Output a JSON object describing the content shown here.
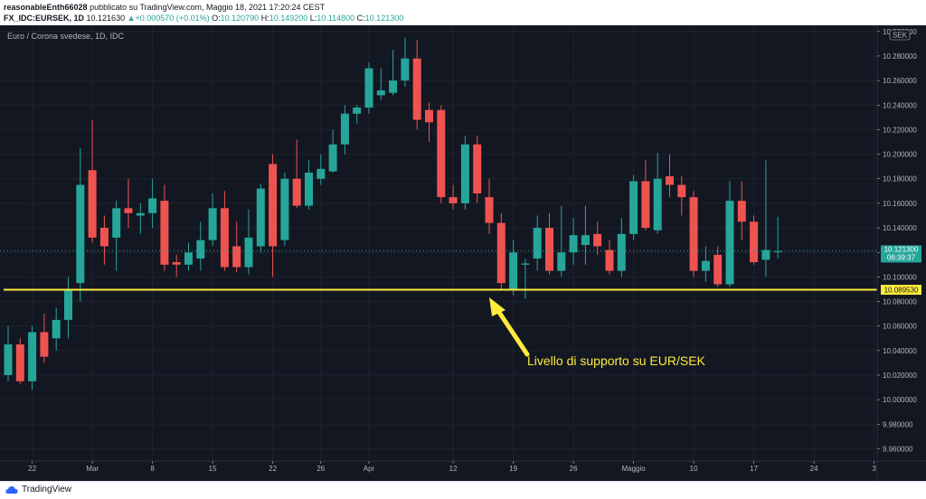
{
  "header": {
    "user": "reasonableEnth66028",
    "published": "pubblicato su TradingView.com, Maggio 18, 2021 17:20:24 CEST",
    "symbol": "FX_IDC:EURSEK, 1D",
    "last": "10.121630",
    "change": "+0.000570 (+0.01%)",
    "o_label": "O:",
    "o_val": "10.120790",
    "h_label": "H:",
    "h_val": "10.149200",
    "l_label": "L:",
    "l_val": "10.114800",
    "c_label": "C:",
    "c_val": "10.121300"
  },
  "footer": {
    "brand": "TradingView"
  },
  "colors": {
    "up": "#26a69a",
    "down": "#ef5350",
    "support": "#ffeb3b",
    "bg": "#131722",
    "grid": "#1e222d",
    "text": "#b2b5be"
  },
  "chart_data": {
    "type": "candlestick",
    "title": "Euro / Corona svedese, 1D, IDC",
    "currency": "SEK",
    "ylim": [
      9.95,
      10.305
    ],
    "y_ticks": [
      "10.300000",
      "10.280000",
      "10.260000",
      "10.240000",
      "10.220000",
      "10.200000",
      "10.180000",
      "10.160000",
      "10.140000",
      "10.120000",
      "10.100000",
      "10.080000",
      "10.060000",
      "10.040000",
      "10.020000",
      "10.000000",
      "9.980000",
      "9.960000"
    ],
    "x_ticks": [
      {
        "label": "22",
        "i": 2
      },
      {
        "label": "Mar",
        "i": 7
      },
      {
        "label": "8",
        "i": 12
      },
      {
        "label": "15",
        "i": 17
      },
      {
        "label": "22",
        "i": 22
      },
      {
        "label": "26",
        "i": 26
      },
      {
        "label": "Apr",
        "i": 30
      },
      {
        "label": "12",
        "i": 37
      },
      {
        "label": "19",
        "i": 42
      },
      {
        "label": "26",
        "i": 47
      },
      {
        "label": "Maggio",
        "i": 52
      },
      {
        "label": "10",
        "i": 57
      },
      {
        "label": "17",
        "i": 62
      },
      {
        "label": "24",
        "i": 67
      },
      {
        "label": "3",
        "i": 72
      }
    ],
    "candles": [
      [
        10.02,
        10.045,
        10.06,
        10.015
      ],
      [
        10.045,
        10.015,
        10.05,
        10.013
      ],
      [
        10.015,
        10.055,
        10.06,
        10.008
      ],
      [
        10.055,
        10.035,
        10.07,
        10.03
      ],
      [
        10.05,
        10.065,
        10.075,
        10.04
      ],
      [
        10.065,
        10.09,
        10.1,
        10.05
      ],
      [
        10.095,
        10.175,
        10.205,
        10.08
      ],
      [
        10.187,
        10.132,
        10.228,
        10.128
      ],
      [
        10.14,
        10.125,
        10.15,
        10.11
      ],
      [
        10.132,
        10.156,
        10.162,
        10.105
      ],
      [
        10.156,
        10.152,
        10.18,
        10.14
      ],
      [
        10.15,
        10.152,
        10.16,
        10.135
      ],
      [
        10.152,
        10.164,
        10.18,
        10.14
      ],
      [
        10.162,
        10.11,
        10.175,
        10.105
      ],
      [
        10.112,
        10.11,
        10.118,
        10.1
      ],
      [
        10.11,
        10.12,
        10.128,
        10.105
      ],
      [
        10.115,
        10.13,
        10.145,
        10.105
      ],
      [
        10.13,
        10.156,
        10.168,
        10.125
      ],
      [
        10.156,
        10.108,
        10.17,
        10.105
      ],
      [
        10.125,
        10.108,
        10.145,
        10.104
      ],
      [
        10.108,
        10.132,
        10.155,
        10.102
      ],
      [
        10.125,
        10.172,
        10.176,
        10.12
      ],
      [
        10.192,
        10.125,
        10.2,
        10.1
      ],
      [
        10.13,
        10.18,
        10.185,
        10.125
      ],
      [
        10.18,
        10.158,
        10.212,
        10.156
      ],
      [
        10.158,
        10.185,
        10.195,
        10.155
      ],
      [
        10.18,
        10.188,
        10.2,
        10.175
      ],
      [
        10.186,
        10.208,
        10.22,
        10.185
      ],
      [
        10.208,
        10.233,
        10.24,
        10.2
      ],
      [
        10.233,
        10.238,
        10.24,
        10.225
      ],
      [
        10.238,
        10.27,
        10.275,
        10.233
      ],
      [
        10.248,
        10.252,
        10.27,
        10.244
      ],
      [
        10.25,
        10.26,
        10.285,
        10.248
      ],
      [
        10.26,
        10.278,
        10.295,
        10.255
      ],
      [
        10.278,
        10.228,
        10.293,
        10.22
      ],
      [
        10.236,
        10.226,
        10.242,
        10.21
      ],
      [
        10.236,
        10.165,
        10.24,
        10.16
      ],
      [
        10.165,
        10.16,
        10.175,
        10.155
      ],
      [
        10.16,
        10.208,
        10.215,
        10.155
      ],
      [
        10.208,
        10.168,
        10.215,
        10.16
      ],
      [
        10.165,
        10.144,
        10.18,
        10.135
      ],
      [
        10.144,
        10.095,
        10.152,
        10.09
      ],
      [
        10.09,
        10.12,
        10.13,
        10.085
      ],
      [
        10.11,
        10.111,
        10.115,
        10.082
      ],
      [
        10.115,
        10.14,
        10.15,
        10.105
      ],
      [
        10.14,
        10.105,
        10.152,
        10.102
      ],
      [
        10.105,
        10.12,
        10.158,
        10.1
      ],
      [
        10.12,
        10.134,
        10.148,
        10.11
      ],
      [
        10.126,
        10.134,
        10.158,
        10.11
      ],
      [
        10.135,
        10.125,
        10.145,
        10.118
      ],
      [
        10.122,
        10.105,
        10.13,
        10.102
      ],
      [
        10.105,
        10.135,
        10.148,
        10.1
      ],
      [
        10.135,
        10.178,
        10.183,
        10.13
      ],
      [
        10.178,
        10.14,
        10.195,
        10.138
      ],
      [
        10.138,
        10.18,
        10.201,
        10.135
      ],
      [
        10.182,
        10.175,
        10.2,
        10.165
      ],
      [
        10.175,
        10.165,
        10.182,
        10.15
      ],
      [
        10.165,
        10.105,
        10.17,
        10.1
      ],
      [
        10.105,
        10.113,
        10.125,
        10.096
      ],
      [
        10.118,
        10.094,
        10.125,
        10.092
      ],
      [
        10.094,
        10.162,
        10.178,
        10.092
      ],
      [
        10.162,
        10.145,
        10.178,
        10.13
      ],
      [
        10.145,
        10.112,
        10.15,
        10.11
      ],
      [
        10.114,
        10.122,
        10.195,
        10.1
      ],
      [
        10.121,
        10.121,
        10.149,
        10.115
      ]
    ],
    "support": {
      "value": 10.08953,
      "label": "10.089530"
    },
    "current": {
      "value": 10.1213,
      "label": "10.121300",
      "countdown": "06:39:37"
    },
    "annotation": "Livello di supporto su EUR/SEK"
  }
}
